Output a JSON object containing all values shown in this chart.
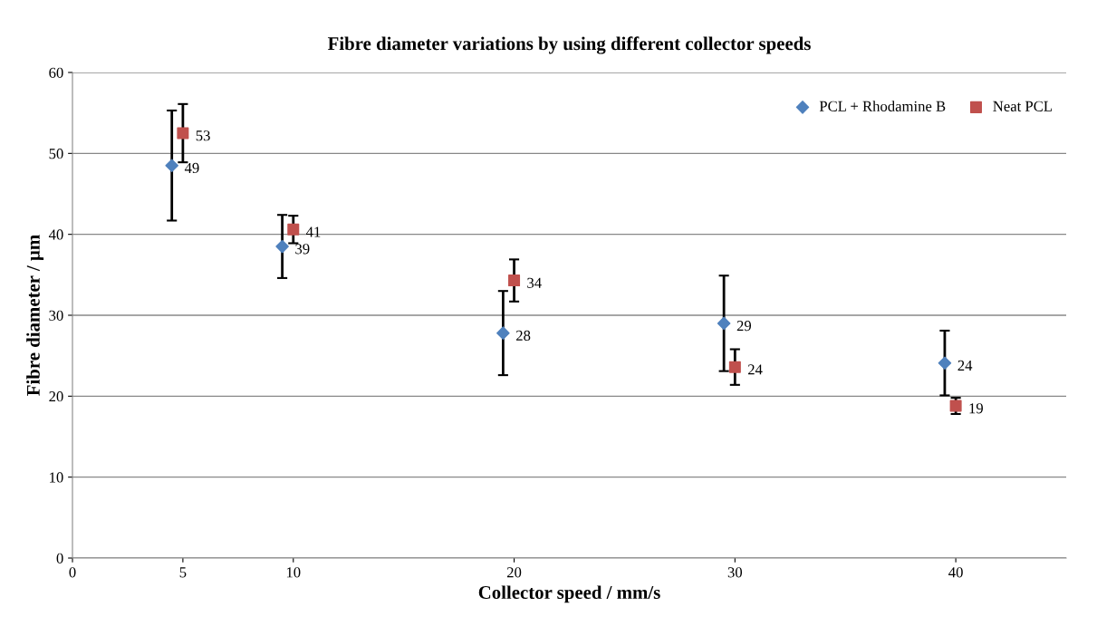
{
  "chart_data": {
    "type": "scatter",
    "title": "Fibre diameter variations by using different collector speeds",
    "xlabel": "Collector speed / mm/s",
    "ylabel": "Fibre diameter / µm",
    "xlim": [
      0,
      45
    ],
    "xticks": [
      0,
      5,
      10,
      20,
      30,
      40
    ],
    "ylim": [
      0,
      60
    ],
    "yticks": [
      0,
      10,
      20,
      30,
      40,
      50,
      60
    ],
    "grid": "y",
    "legend": "top right",
    "series": [
      {
        "name": "PCL + Rhodamine B",
        "color": "#4f81bd",
        "marker": "diamond",
        "x": [
          4.5,
          9.5,
          19.5,
          29.5,
          39.5
        ],
        "values": [
          48.5,
          38.5,
          27.8,
          29,
          24.1
        ],
        "errors": [
          6.8,
          3.9,
          5.2,
          5.9,
          4
        ],
        "value_labels": [
          "49",
          "39",
          "28",
          "29",
          "24"
        ]
      },
      {
        "name": "Neat PCL",
        "color": "#c0504d",
        "marker": "square",
        "x": [
          5,
          10,
          20,
          30,
          40
        ],
        "values": [
          52.5,
          40.6,
          34.3,
          23.6,
          18.8
        ],
        "errors": [
          3.6,
          1.7,
          2.6,
          2.2,
          1
        ],
        "value_labels": [
          "53",
          "41",
          "34",
          "24",
          "19"
        ]
      }
    ]
  }
}
